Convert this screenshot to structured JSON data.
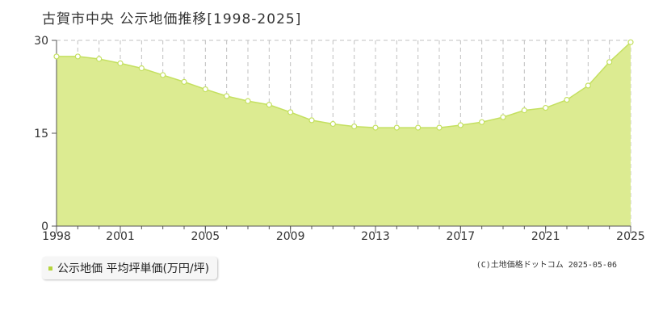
{
  "title": "古賀市中央 公示地価推移[1998-2025]",
  "legend": {
    "label": "公示地価 平均坪単価(万円/坪)"
  },
  "source": "(C)土地価格ドットコム 2025-05-06",
  "colors": {
    "fill": "#dceb91",
    "line": "#c4e060",
    "marker_fill": "#ffffff",
    "marker_stroke": "#c4e060",
    "legend_swatch": "#b5d43c",
    "grid": "#c0c0c0",
    "axis": "#555555"
  },
  "chart_data": {
    "type": "area",
    "title": "古賀市中央 公示地価推移[1998-2025]",
    "xlabel": "",
    "ylabel": "",
    "ylim": [
      0,
      30
    ],
    "yticks": [
      "0",
      "15",
      "30"
    ],
    "xticks": [
      "1998",
      "2001",
      "2005",
      "2009",
      "2013",
      "2017",
      "2021",
      "2025"
    ],
    "grid": true,
    "legend_placement": "bottom-left",
    "series": [
      {
        "name": "公示地価 平均坪単価(万円/坪)",
        "x": [
          1998,
          1999,
          2000,
          2001,
          2002,
          2003,
          2004,
          2005,
          2006,
          2007,
          2008,
          2009,
          2010,
          2011,
          2012,
          2013,
          2014,
          2015,
          2016,
          2017,
          2018,
          2019,
          2020,
          2021,
          2022,
          2023,
          2024,
          2025
        ],
        "values": [
          27.4,
          27.4,
          27.0,
          26.3,
          25.5,
          24.4,
          23.3,
          22.1,
          21.0,
          20.2,
          19.6,
          18.4,
          17.1,
          16.5,
          16.1,
          15.9,
          15.9,
          15.9,
          15.9,
          16.3,
          16.8,
          17.6,
          18.7,
          19.1,
          20.4,
          22.7,
          26.5,
          29.7
        ]
      }
    ]
  }
}
